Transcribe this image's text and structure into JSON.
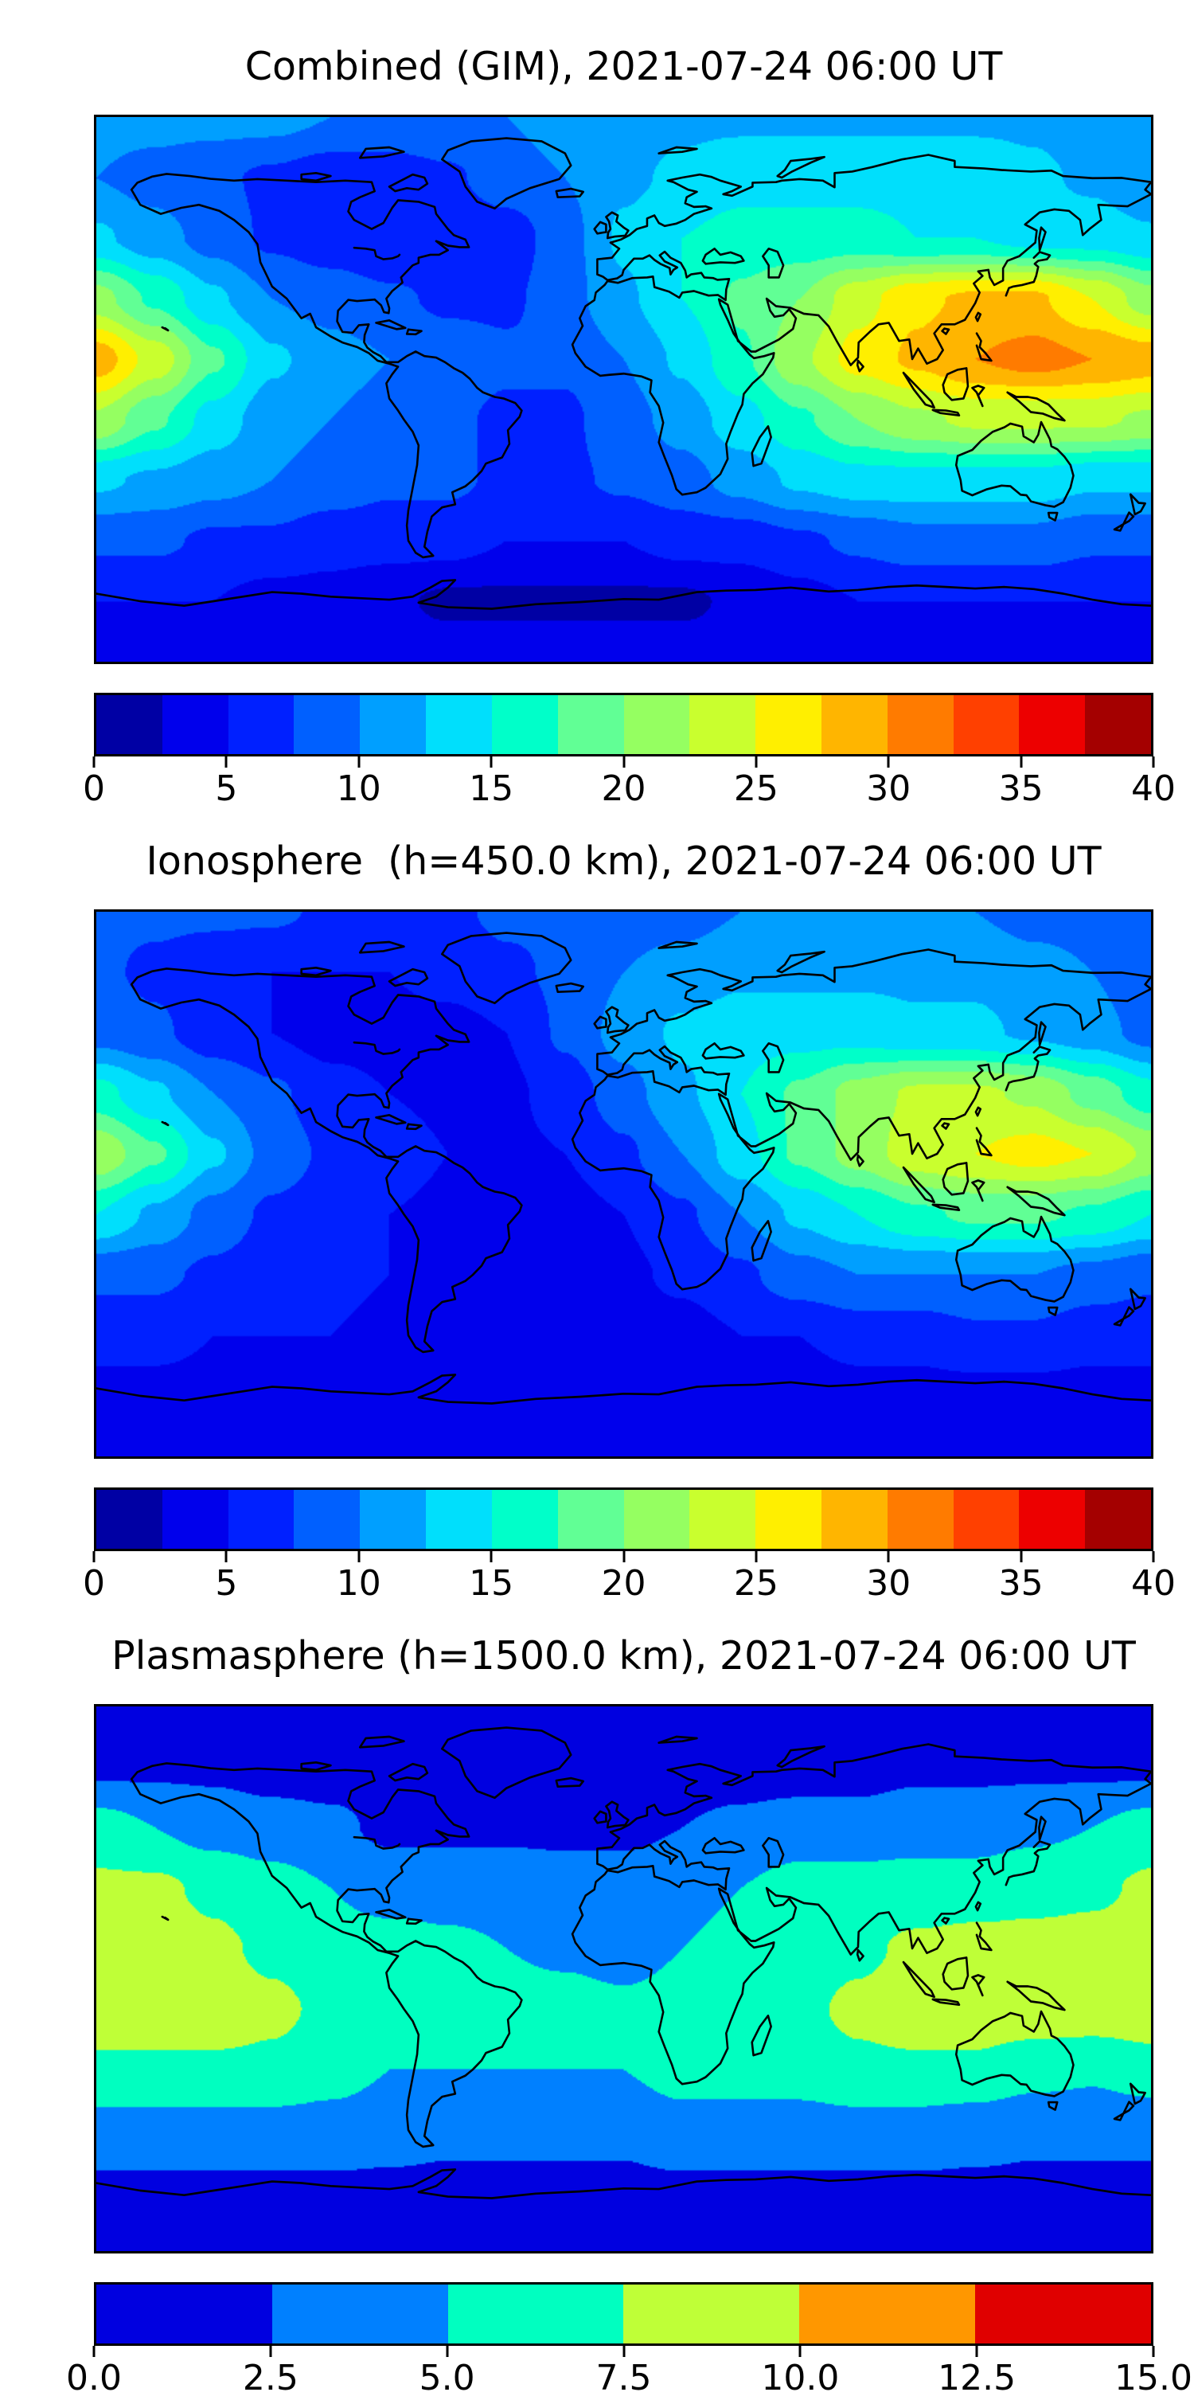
{
  "figure": {
    "kind": "three-panel global ionosphere/plasmasphere TEC contour figure",
    "background": "#ffffff",
    "text_color": "#000000",
    "coastline_color": "#000000",
    "panel_count": 3
  },
  "panels": [
    {
      "id": "combined-gim",
      "title": "Combined (GIM), 2021-07-24 06:00 UT",
      "colorbar_tick_labels": [
        "0",
        "5",
        "10",
        "15",
        "20",
        "25",
        "30",
        "35",
        "40"
      ]
    },
    {
      "id": "ionosphere",
      "title": "Ionosphere  (h=450.0 km), 2021-07-24 06:00 UT",
      "colorbar_tick_labels": [
        "0",
        "5",
        "10",
        "15",
        "20",
        "25",
        "30",
        "35",
        "40"
      ]
    },
    {
      "id": "plasmasphere",
      "title": "Plasmasphere (h=1500.0 km), 2021-07-24 06:00 UT",
      "colorbar_tick_labels": [
        "0.0",
        "2.5",
        "5.0",
        "7.5",
        "10.0",
        "12.5",
        "15.0"
      ]
    }
  ],
  "chart_data": [
    {
      "type": "heatmap",
      "subtype": "filled-contour-world-map",
      "title": "Combined (GIM), 2021-07-24 06:00 UT",
      "layer": "Combined (GIM)",
      "datetime": "2021-07-24 06:00 UT",
      "projection": "equirectangular",
      "lon_range": [
        -180,
        180
      ],
      "lat_range": [
        -90,
        90
      ],
      "colormap": "jet (discrete)",
      "levels": {
        "vmin": 0,
        "vmax": 40,
        "step": 2.5,
        "n_bins": 16
      },
      "colorbar_ticks": [
        0,
        5,
        10,
        15,
        20,
        25,
        30,
        35,
        40
      ],
      "colorbar_colors": [
        "#0000A4",
        "#0000EC",
        "#0020FF",
        "#0060FF",
        "#009FFF",
        "#00DFFC",
        "#00FFC9",
        "#61FF95",
        "#95FF61",
        "#C9FF2E",
        "#FFEF00",
        "#FFB500",
        "#FF7B00",
        "#FF4000",
        "#ED0000",
        "#A40000"
      ],
      "grid": {
        "lons": [
          -180,
          -160,
          -140,
          -120,
          -100,
          -80,
          -60,
          -40,
          -20,
          0,
          20,
          40,
          60,
          80,
          100,
          120,
          140,
          160,
          180
        ],
        "lats": [
          90,
          70,
          50,
          30,
          10,
          -10,
          -30,
          -50,
          -70,
          -90
        ],
        "values": [
          [
            11,
            11,
            11,
            11,
            10,
            10,
            10,
            10,
            11,
            11,
            12,
            12,
            12,
            12,
            12,
            12,
            12,
            11,
            11
          ],
          [
            10,
            9,
            8,
            7,
            6,
            6,
            7,
            9,
            10,
            12,
            13,
            14,
            14,
            14,
            14,
            14,
            13,
            12,
            10
          ],
          [
            13,
            11,
            9,
            7,
            6,
            5,
            5,
            6,
            9,
            13,
            15,
            16,
            16,
            16,
            15,
            15,
            14,
            14,
            13
          ],
          [
            21,
            17,
            13,
            10,
            9,
            8,
            7,
            7,
            9,
            12,
            15,
            18,
            20,
            24,
            27,
            28,
            28,
            25,
            21
          ],
          [
            29,
            24,
            18,
            13,
            11,
            10,
            9,
            8,
            8,
            10,
            13,
            17,
            22,
            26,
            28,
            30,
            31,
            30,
            29
          ],
          [
            22,
            18,
            14,
            11,
            10,
            9,
            8,
            7,
            7,
            9,
            11,
            14,
            17,
            20,
            22,
            23,
            23,
            23,
            22
          ],
          [
            13,
            12,
            11,
            10,
            9,
            8,
            8,
            7,
            7,
            8,
            9,
            11,
            13,
            14,
            14,
            14,
            14,
            13,
            13
          ],
          [
            8,
            8,
            7,
            7,
            6,
            6,
            6,
            5,
            5,
            5,
            6,
            6,
            7,
            8,
            9,
            9,
            9,
            8,
            8
          ],
          [
            5,
            5,
            5,
            4,
            4,
            3,
            2,
            2,
            2,
            2,
            2,
            3,
            4,
            5,
            5,
            5,
            5,
            5,
            5
          ],
          [
            4,
            4,
            4,
            4,
            4,
            4,
            4,
            4,
            4,
            4,
            4,
            4,
            4,
            4,
            4,
            4,
            4,
            4,
            4
          ]
        ]
      }
    },
    {
      "type": "heatmap",
      "subtype": "filled-contour-world-map",
      "title": "Ionosphere  (h=450.0 km), 2021-07-24 06:00 UT",
      "layer": "Ionosphere (h=450.0 km)",
      "datetime": "2021-07-24 06:00 UT",
      "projection": "equirectangular",
      "lon_range": [
        -180,
        180
      ],
      "lat_range": [
        -90,
        90
      ],
      "colormap": "jet (discrete)",
      "levels": {
        "vmin": 0,
        "vmax": 40,
        "step": 2.5,
        "n_bins": 16
      },
      "colorbar_ticks": [
        0,
        5,
        10,
        15,
        20,
        25,
        30,
        35,
        40
      ],
      "colorbar_colors": [
        "#0000A4",
        "#0000EC",
        "#0020FF",
        "#0060FF",
        "#009FFF",
        "#00DFFC",
        "#00FFC9",
        "#61FF95",
        "#95FF61",
        "#C9FF2E",
        "#FFEF00",
        "#FFB500",
        "#FF7B00",
        "#FF4000",
        "#ED0000",
        "#A40000"
      ],
      "grid": {
        "lons": [
          -180,
          -160,
          -140,
          -120,
          -100,
          -80,
          -60,
          -40,
          -20,
          0,
          20,
          40,
          60,
          80,
          100,
          120,
          140,
          160,
          180
        ],
        "lats": [
          90,
          70,
          50,
          30,
          10,
          -10,
          -30,
          -50,
          -70,
          -90
        ],
        "values": [
          [
            8,
            8,
            8,
            8,
            7,
            7,
            7,
            8,
            8,
            9,
            9,
            10,
            10,
            10,
            10,
            10,
            9,
            9,
            8
          ],
          [
            8,
            7,
            6,
            5,
            5,
            5,
            6,
            7,
            8,
            10,
            11,
            12,
            12,
            12,
            12,
            12,
            11,
            10,
            8
          ],
          [
            9,
            8,
            6,
            5,
            4,
            4,
            4,
            5,
            8,
            11,
            13,
            14,
            14,
            14,
            13,
            13,
            12,
            11,
            9
          ],
          [
            16,
            13,
            10,
            8,
            6,
            5,
            4.5,
            4.5,
            6,
            9,
            12,
            15,
            18,
            21,
            23,
            23,
            22,
            19,
            16
          ],
          [
            22,
            18,
            13,
            9,
            7,
            6,
            5,
            4.5,
            5,
            7,
            10,
            14,
            18,
            21,
            24,
            25,
            26,
            25,
            22
          ],
          [
            15,
            12,
            9,
            7,
            6,
            5,
            4.5,
            4,
            4,
            5,
            7,
            10,
            13,
            15,
            17,
            18,
            18,
            17,
            15
          ],
          [
            8,
            8,
            7,
            6,
            5.5,
            5,
            4.5,
            4,
            4,
            4.5,
            5.5,
            7,
            9,
            10,
            10,
            10,
            10,
            9,
            8
          ],
          [
            6,
            6,
            5,
            5,
            5,
            4.5,
            4,
            4,
            4,
            4,
            4,
            5,
            5,
            6,
            6,
            7,
            7,
            6,
            6
          ],
          [
            4,
            4,
            4,
            4,
            3.5,
            3,
            3,
            2.5,
            2.5,
            2.5,
            3,
            3,
            3.5,
            4,
            4,
            4,
            4,
            4,
            4
          ],
          [
            3,
            3,
            3,
            3,
            3,
            3,
            3,
            3,
            3,
            3,
            3,
            3,
            3,
            3,
            3,
            3,
            3,
            3,
            3
          ]
        ]
      }
    },
    {
      "type": "heatmap",
      "subtype": "filled-contour-world-map",
      "title": "Plasmasphere (h=1500.0 km), 2021-07-24 06:00 UT",
      "layer": "Plasmasphere (h=1500.0 km)",
      "datetime": "2021-07-24 06:00 UT",
      "projection": "equirectangular",
      "lon_range": [
        -180,
        180
      ],
      "lat_range": [
        -90,
        90
      ],
      "colormap": "jet (discrete)",
      "levels": {
        "vmin": 0,
        "vmax": 15,
        "step": 2.5,
        "n_bins": 6
      },
      "colorbar_ticks": [
        0.0,
        2.5,
        5.0,
        7.5,
        10.0,
        12.5,
        15.0
      ],
      "colorbar_colors": [
        "#0000E0",
        "#0080FF",
        "#00FFC0",
        "#BFFF37",
        "#FF9700",
        "#E00000"
      ],
      "grid": {
        "lons": [
          -180,
          -160,
          -140,
          -120,
          -100,
          -80,
          -60,
          -40,
          -20,
          0,
          20,
          40,
          60,
          80,
          100,
          120,
          140,
          160,
          180
        ],
        "lats": [
          90,
          70,
          50,
          30,
          10,
          -10,
          -30,
          -50,
          -70,
          -90
        ],
        "values": [
          [
            1.5,
            1.5,
            1.5,
            1.5,
            1.5,
            1.5,
            1.5,
            1.5,
            1.5,
            1.5,
            1.5,
            1.5,
            1.5,
            1.5,
            1.5,
            1.5,
            1.5,
            1.5,
            1.5
          ],
          [
            2,
            2,
            2,
            1.5,
            1.5,
            1.5,
            1.5,
            1.5,
            1.5,
            1.5,
            1.5,
            1.5,
            1.5,
            1.5,
            2,
            2,
            2,
            2,
            2
          ],
          [
            6,
            5,
            4,
            3.5,
            3,
            2,
            2,
            2,
            2,
            2,
            2.5,
            3,
            3.5,
            3.5,
            4,
            4,
            4.5,
            5,
            6
          ],
          [
            8,
            8,
            7,
            6,
            5,
            4,
            4,
            4,
            3.5,
            3.5,
            4,
            5,
            6,
            6,
            6,
            6,
            6.5,
            7,
            8
          ],
          [
            9,
            9,
            8,
            7,
            6,
            6,
            5.5,
            5,
            4.5,
            4,
            5,
            6,
            6,
            7,
            8,
            8.5,
            8.5,
            8.5,
            9
          ],
          [
            9,
            9,
            9,
            8,
            7,
            6,
            6,
            6,
            6,
            5.5,
            6,
            6,
            7,
            8,
            9,
            9,
            9,
            9,
            9
          ],
          [
            7,
            7,
            7,
            7,
            6,
            5,
            5,
            5,
            5,
            5,
            6,
            6,
            6,
            7,
            7,
            7,
            6,
            5.5,
            6.5
          ],
          [
            4,
            4,
            4,
            4,
            4,
            3.5,
            3,
            3,
            3,
            3,
            4,
            4,
            4,
            4,
            4,
            3.5,
            3,
            3,
            3
          ],
          [
            2,
            2,
            2,
            2,
            2,
            2,
            2,
            2,
            2,
            2,
            2,
            2,
            2,
            2,
            2,
            2,
            2,
            2,
            2
          ],
          [
            1.5,
            1.5,
            1.5,
            1.5,
            1.5,
            1.5,
            1.5,
            1.5,
            1.5,
            1.5,
            1.5,
            1.5,
            1.5,
            1.5,
            1.5,
            1.5,
            1.5,
            1.5,
            1.5
          ]
        ]
      }
    }
  ]
}
